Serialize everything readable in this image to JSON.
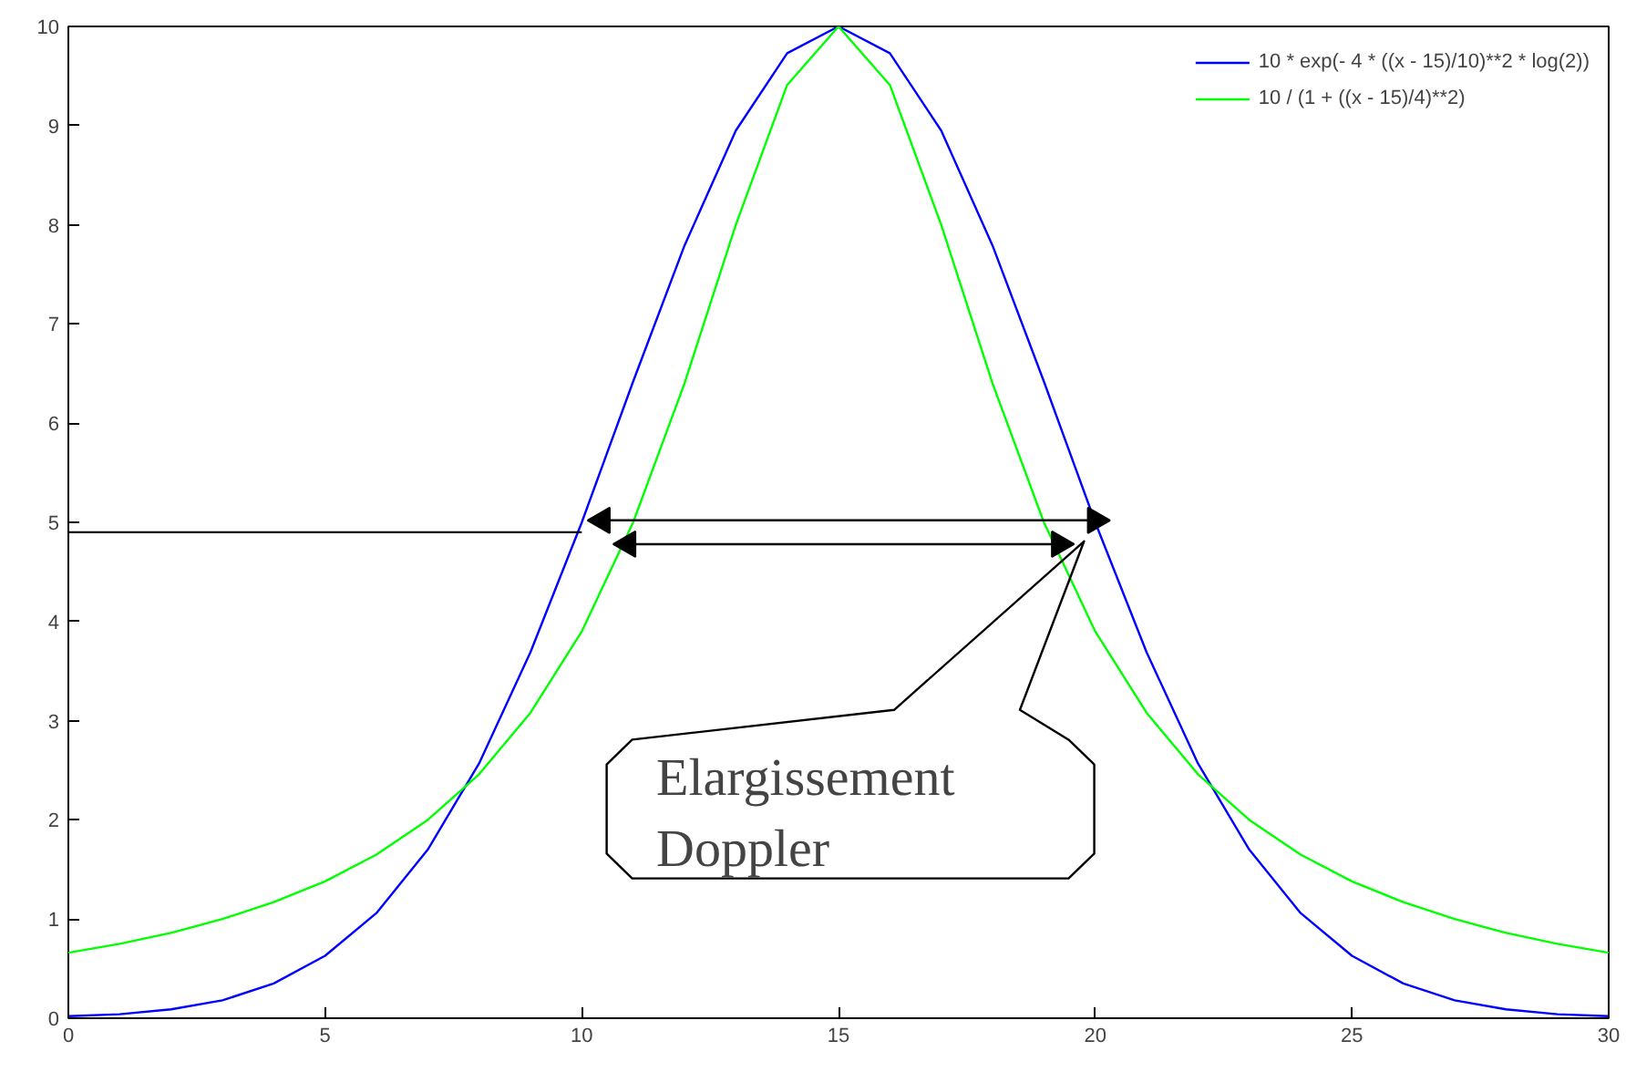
{
  "chart_data": {
    "type": "line",
    "xlim": [
      0,
      30
    ],
    "ylim": [
      0,
      10
    ],
    "xticks": [
      0,
      5,
      10,
      15,
      20,
      25,
      30
    ],
    "yticks": [
      0,
      1,
      2,
      3,
      4,
      5,
      6,
      7,
      8,
      9,
      10
    ],
    "grid": false,
    "legend": "top right",
    "marker": "none",
    "line_style": "solid",
    "x": [
      0,
      1,
      2,
      3,
      4,
      5,
      6,
      7,
      8,
      9,
      10,
      11,
      12,
      13,
      14,
      15,
      16,
      17,
      18,
      19,
      20,
      21,
      22,
      23,
      24,
      25,
      26,
      27,
      28,
      29,
      30
    ],
    "series": [
      {
        "name": "10 * exp(- 4 * ((x - 15)/10)**2 * log(2))",
        "color": "#0000ff",
        "values": [
          0.02,
          0.04,
          0.09,
          0.18,
          0.35,
          0.63,
          1.06,
          1.7,
          2.57,
          3.69,
          5.0,
          6.42,
          7.79,
          8.95,
          9.73,
          10.0,
          9.73,
          8.95,
          7.79,
          6.42,
          5.0,
          3.69,
          2.57,
          1.7,
          1.06,
          0.63,
          0.35,
          0.18,
          0.09,
          0.04,
          0.02
        ]
      },
      {
        "name": "10 / (1 + ((x - 15)/4)**2)",
        "color": "#00ff00",
        "values": [
          0.66,
          0.75,
          0.86,
          1.0,
          1.17,
          1.38,
          1.65,
          2.0,
          2.46,
          3.08,
          3.9,
          5.0,
          6.4,
          8.0,
          9.41,
          10.0,
          9.41,
          8.0,
          6.4,
          5.0,
          3.9,
          3.08,
          2.46,
          2.0,
          1.65,
          1.38,
          1.17,
          1.0,
          0.86,
          0.75,
          0.66
        ]
      },
      {
        "type": "line",
        "color": "#000000",
        "x": [
          0,
          10
        ],
        "values": [
          4.9,
          4.9
        ]
      },
      {
        "type": "line",
        "color": "#000000",
        "marker": "triangle",
        "x": [
          10.4,
          20.0
        ],
        "values": [
          5.02,
          5.02
        ]
      },
      {
        "type": "line",
        "color": "#000000",
        "marker": "triangle",
        "x": [
          10.9,
          19.3
        ],
        "values": [
          4.78,
          4.78
        ]
      }
    ],
    "annotations": [
      "Elargissement\nDoppler"
    ]
  }
}
